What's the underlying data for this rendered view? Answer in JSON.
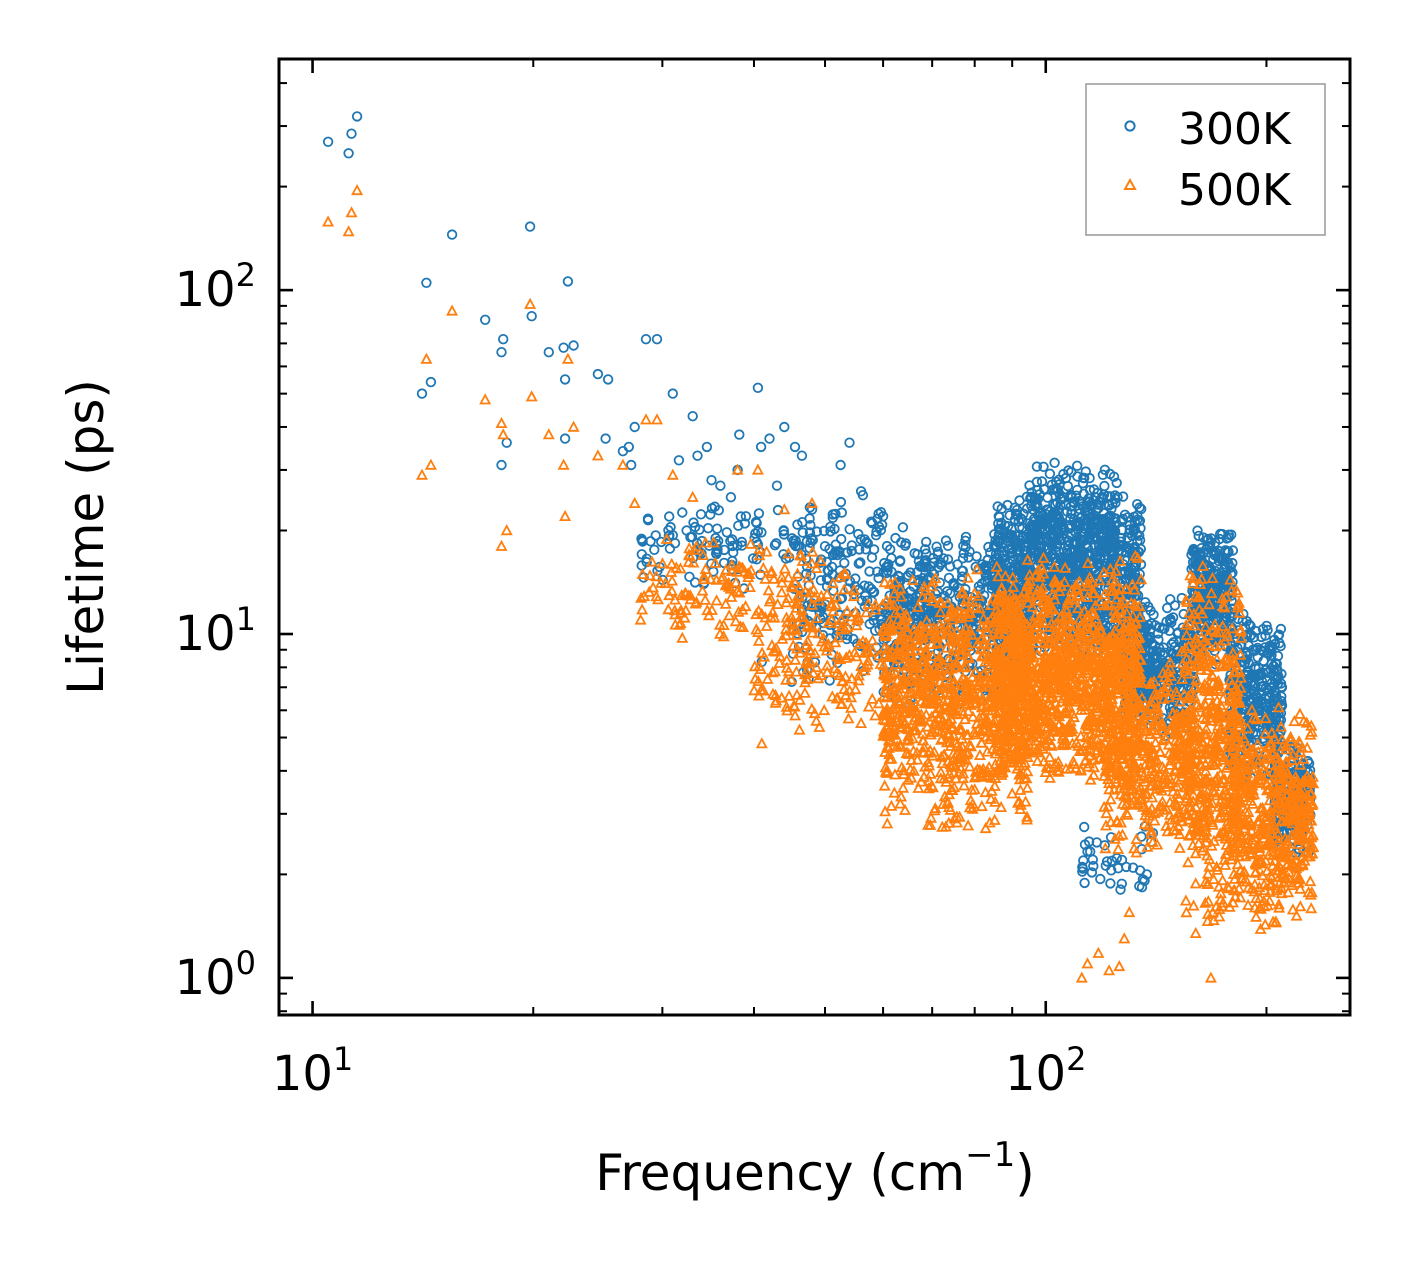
{
  "chart_data": {
    "type": "scatter",
    "xscale": "log",
    "yscale": "log",
    "xlim": [
      9,
      260
    ],
    "ylim": [
      0.78,
      470
    ],
    "xlabel": "Frequency (cm",
    "xlabel_sup": "−1",
    "xlabel_close": ")",
    "ylabel": "Lifetime (ps)",
    "x_ticks": [
      {
        "value": 10,
        "base": "10",
        "exp": "1"
      },
      {
        "value": 100,
        "base": "10",
        "exp": "2"
      }
    ],
    "y_ticks": [
      {
        "value": 1,
        "base": "10",
        "exp": "0"
      },
      {
        "value": 10,
        "base": "10",
        "exp": "1"
      },
      {
        "value": 100,
        "base": "10",
        "exp": "2"
      }
    ],
    "legend_position": "top-right",
    "series": [
      {
        "name": "300K",
        "marker": "circle",
        "color": "#1f77b4",
        "points": [
          [
            10.5,
            270
          ],
          [
            11.2,
            250
          ],
          [
            11.3,
            285
          ],
          [
            11.5,
            320
          ],
          [
            14.3,
            105
          ],
          [
            14.1,
            50
          ],
          [
            14.5,
            54
          ],
          [
            15.5,
            145
          ],
          [
            17.2,
            82
          ],
          [
            18.1,
            66
          ],
          [
            18.2,
            72
          ],
          [
            18.4,
            36
          ],
          [
            18.1,
            31
          ],
          [
            19.8,
            153
          ],
          [
            19.9,
            84
          ],
          [
            21.0,
            66
          ],
          [
            22.0,
            68
          ],
          [
            22.1,
            55
          ],
          [
            22.3,
            106
          ],
          [
            22.7,
            69
          ],
          [
            22.1,
            37
          ],
          [
            24.5,
            57
          ],
          [
            25.3,
            55
          ],
          [
            25.1,
            37
          ],
          [
            26.5,
            34
          ],
          [
            27.0,
            35
          ],
          [
            27.2,
            31
          ],
          [
            27.5,
            40
          ],
          [
            28.5,
            72
          ],
          [
            29.5,
            72
          ],
          [
            31.0,
            50
          ],
          [
            31.6,
            32
          ],
          [
            33.0,
            43
          ],
          [
            33.5,
            33
          ],
          [
            34.5,
            35
          ],
          [
            35.0,
            28
          ],
          [
            36.0,
            27
          ],
          [
            37.2,
            25
          ],
          [
            38.0,
            30
          ],
          [
            38.2,
            38
          ],
          [
            39.0,
            22
          ],
          [
            40.5,
            52
          ],
          [
            40.9,
            35
          ],
          [
            42.0,
            37
          ],
          [
            43.0,
            27
          ],
          [
            44.0,
            40
          ],
          [
            45.5,
            35
          ],
          [
            46.5,
            33
          ],
          [
            48.0,
            23
          ],
          [
            50.0,
            18
          ],
          [
            52.5,
            31
          ],
          [
            54.0,
            36
          ],
          [
            56.0,
            26
          ],
          [
            58.0,
            21
          ],
          [
            60.0,
            22
          ],
          [
            41.0,
            8.3
          ],
          [
            48.0,
            12
          ],
          [
            55.0,
            11.5
          ],
          [
            62.0,
            10.3
          ]
        ],
        "bands": [
          {
            "x": [
              28,
              60
            ],
            "y": [
              13,
              26
            ],
            "n": 180
          },
          {
            "x": [
              45,
              70
            ],
            "y": [
              7,
              18
            ],
            "n": 160
          },
          {
            "x": [
              60,
              95
            ],
            "y": [
              6,
              21
            ],
            "n": 500
          },
          {
            "x": [
              85,
              135
            ],
            "y": [
              8,
              27
            ],
            "n": 900
          },
          {
            "x": [
              95,
              125
            ],
            "y": [
              14,
              32
            ],
            "n": 250
          },
          {
            "x": [
              128,
              160
            ],
            "y": [
              5,
              13
            ],
            "n": 350
          },
          {
            "x": [
              158,
              180
            ],
            "y": [
              8,
              21
            ],
            "n": 300
          },
          {
            "x": [
              178,
              210
            ],
            "y": [
              3.5,
              12
            ],
            "n": 350
          },
          {
            "x": [
              205,
              230
            ],
            "y": [
              2.2,
              5
            ],
            "n": 180
          },
          {
            "x": [
              110,
              140
            ],
            "y": [
              1.65,
              2.9
            ],
            "n": 40
          }
        ]
      },
      {
        "name": "500K",
        "marker": "triangle",
        "color": "#ff7f0e",
        "points": [
          [
            10.5,
            158
          ],
          [
            11.2,
            148
          ],
          [
            11.3,
            168
          ],
          [
            11.5,
            195
          ],
          [
            14.3,
            63
          ],
          [
            14.1,
            29
          ],
          [
            14.5,
            31
          ],
          [
            15.5,
            87
          ],
          [
            17.2,
            48
          ],
          [
            18.1,
            41
          ],
          [
            18.2,
            38
          ],
          [
            18.4,
            20
          ],
          [
            18.1,
            18
          ],
          [
            19.8,
            91
          ],
          [
            19.9,
            49
          ],
          [
            21.0,
            38
          ],
          [
            22.0,
            31
          ],
          [
            22.3,
            63
          ],
          [
            22.7,
            40
          ],
          [
            22.1,
            22
          ],
          [
            24.5,
            33
          ],
          [
            26.5,
            31
          ],
          [
            27.5,
            24
          ],
          [
            28.5,
            42
          ],
          [
            29.5,
            42
          ],
          [
            31.0,
            29
          ],
          [
            33.0,
            25
          ],
          [
            38.0,
            30
          ],
          [
            40.5,
            30
          ],
          [
            44.0,
            23
          ],
          [
            48.0,
            24
          ],
          [
            41.0,
            4.8
          ],
          [
            52.0,
            6.5
          ],
          [
            56.0,
            5.5
          ],
          [
            112,
            1.0
          ],
          [
            114,
            1.1
          ],
          [
            118,
            1.18
          ],
          [
            122,
            1.05
          ],
          [
            126,
            1.08
          ],
          [
            128,
            1.3
          ],
          [
            130,
            1.55
          ],
          [
            168,
            1.0
          ]
        ],
        "bands": [
          {
            "x": [
              28,
              55
            ],
            "y": [
              9,
              20
            ],
            "n": 170
          },
          {
            "x": [
              40,
              70
            ],
            "y": [
              5,
              14
            ],
            "n": 220
          },
          {
            "x": [
              60,
              95
            ],
            "y": [
              2.6,
              16
            ],
            "n": 900
          },
          {
            "x": [
              85,
              135
            ],
            "y": [
              3.5,
              17
            ],
            "n": 1200
          },
          {
            "x": [
              120,
              160
            ],
            "y": [
              2.2,
              9
            ],
            "n": 450
          },
          {
            "x": [
              155,
              185
            ],
            "y": [
              1.3,
              17
            ],
            "n": 500
          },
          {
            "x": [
              180,
              232
            ],
            "y": [
              1.35,
              6.5
            ],
            "n": 500
          }
        ]
      }
    ]
  }
}
